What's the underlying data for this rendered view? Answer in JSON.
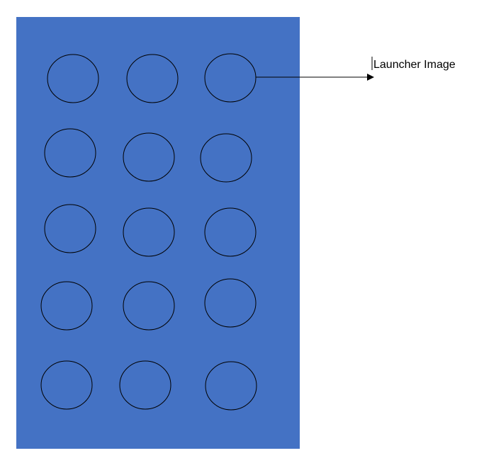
{
  "panel": {
    "color": "#4472c4",
    "rows": 5,
    "columns": 3
  },
  "callout": {
    "label": "Launcher Image"
  }
}
